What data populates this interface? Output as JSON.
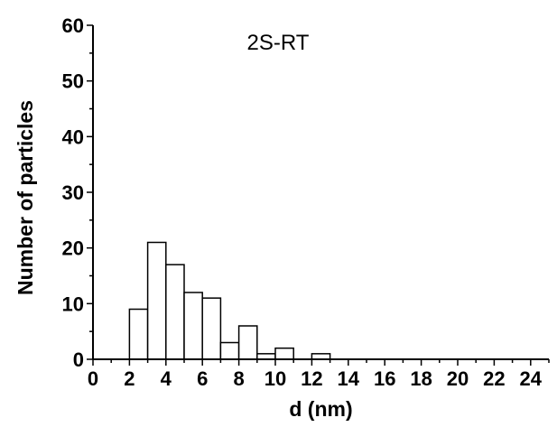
{
  "chart_data": {
    "type": "bar",
    "title": "",
    "annotation": "2S-RT",
    "xlabel": "d (nm)",
    "ylabel": "Number of particles",
    "xlim": [
      0,
      25
    ],
    "ylim": [
      0,
      60
    ],
    "x_ticks": [
      "0",
      "2",
      "4",
      "6",
      "8",
      "10",
      "12",
      "14",
      "16",
      "18",
      "20",
      "22",
      "24"
    ],
    "y_ticks": [
      "0",
      "10",
      "20",
      "30",
      "40",
      "50",
      "60"
    ],
    "bin_width": 1,
    "bins": [
      {
        "x": 2.5,
        "count": 9
      },
      {
        "x": 3.5,
        "count": 21
      },
      {
        "x": 4.5,
        "count": 17
      },
      {
        "x": 5.5,
        "count": 12
      },
      {
        "x": 6.5,
        "count": 11
      },
      {
        "x": 7.5,
        "count": 3
      },
      {
        "x": 8.5,
        "count": 6
      },
      {
        "x": 9.5,
        "count": 1
      },
      {
        "x": 10.5,
        "count": 2
      },
      {
        "x": 12.5,
        "count": 1
      }
    ],
    "bar_fill": "#ffffff",
    "bar_stroke": "#000000",
    "grid": false
  }
}
